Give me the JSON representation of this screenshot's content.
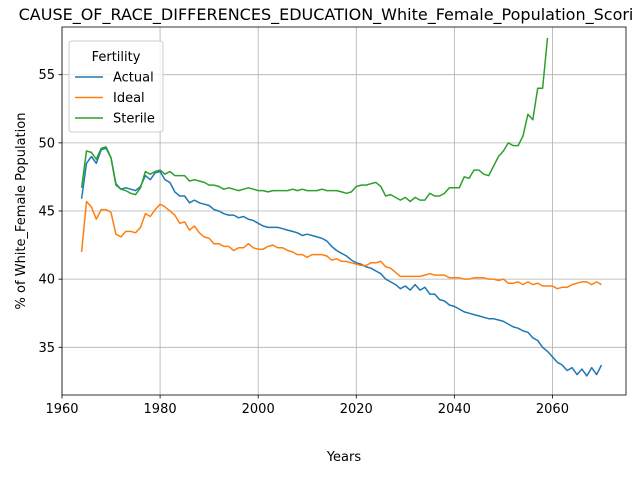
{
  "chart_data": {
    "type": "line",
    "title": "CAUSE_OF_RACE_DIFFERENCES_EDUCATION_White_Female_Population_Scori",
    "xlabel": "Years",
    "ylabel": "% of White_Female Population",
    "xlim": [
      1960,
      2075
    ],
    "ylim": [
      31.5,
      58.5
    ],
    "xticks": [
      1960,
      1980,
      2000,
      2020,
      2040,
      2060
    ],
    "yticks": [
      35,
      40,
      45,
      50,
      55
    ],
    "grid": true,
    "legend": {
      "title": "Fertility",
      "placement": "top-left"
    },
    "series": [
      {
        "name": "Actual",
        "color": "#1f77b4",
        "x": [
          1964,
          1965,
          1966,
          1967,
          1968,
          1969,
          1970,
          1971,
          1972,
          1973,
          1974,
          1975,
          1976,
          1977,
          1978,
          1979,
          1980,
          1981,
          1982,
          1983,
          1984,
          1985,
          1986,
          1987,
          1988,
          1989,
          1990,
          1991,
          1992,
          1993,
          1994,
          1995,
          1996,
          1997,
          1998,
          1999,
          2000,
          2001,
          2002,
          2003,
          2004,
          2005,
          2006,
          2007,
          2008,
          2009,
          2010,
          2011,
          2012,
          2013,
          2014,
          2015,
          2016,
          2017,
          2018,
          2019,
          2020,
          2021,
          2022,
          2023,
          2024,
          2025,
          2026,
          2027,
          2028,
          2029,
          2030,
          2031,
          2032,
          2033,
          2034,
          2035,
          2036,
          2037,
          2038,
          2039,
          2040,
          2041,
          2042,
          2043,
          2044,
          2045,
          2046,
          2047,
          2048,
          2049,
          2050,
          2051,
          2052,
          2053,
          2054,
          2055,
          2056,
          2057,
          2058,
          2059,
          2060,
          2061,
          2062,
          2063,
          2064,
          2065,
          2066,
          2067,
          2068,
          2069,
          2070
        ],
        "values": [
          45.9,
          48.5,
          49.0,
          48.5,
          49.5,
          49.6,
          48.9,
          47.0,
          46.6,
          46.7,
          46.6,
          46.5,
          46.8,
          47.6,
          47.3,
          47.8,
          47.9,
          47.3,
          47.1,
          46.4,
          46.1,
          46.1,
          45.6,
          45.8,
          45.6,
          45.5,
          45.4,
          45.1,
          45.0,
          44.8,
          44.7,
          44.7,
          44.5,
          44.6,
          44.4,
          44.3,
          44.1,
          43.9,
          43.8,
          43.8,
          43.8,
          43.7,
          43.6,
          43.5,
          43.4,
          43.2,
          43.3,
          43.2,
          43.1,
          43.0,
          42.8,
          42.4,
          42.1,
          41.9,
          41.7,
          41.4,
          41.2,
          41.1,
          40.9,
          40.8,
          40.6,
          40.4,
          40.0,
          39.8,
          39.6,
          39.3,
          39.5,
          39.2,
          39.6,
          39.2,
          39.4,
          38.9,
          38.9,
          38.5,
          38.4,
          38.1,
          38.0,
          37.8,
          37.6,
          37.5,
          37.4,
          37.3,
          37.2,
          37.1,
          37.1,
          37.0,
          36.9,
          36.7,
          36.5,
          36.4,
          36.2,
          36.1,
          35.7,
          35.5,
          35.0,
          34.7,
          34.3,
          33.9,
          33.7,
          33.3,
          33.5,
          33.0,
          33.4,
          32.9,
          33.5,
          33.0,
          33.7
        ]
      },
      {
        "name": "Ideal",
        "color": "#ff7f0e",
        "x": [
          1964,
          1965,
          1966,
          1967,
          1968,
          1969,
          1970,
          1971,
          1972,
          1973,
          1974,
          1975,
          1976,
          1977,
          1978,
          1979,
          1980,
          1981,
          1982,
          1983,
          1984,
          1985,
          1986,
          1987,
          1988,
          1989,
          1990,
          1991,
          1992,
          1993,
          1994,
          1995,
          1996,
          1997,
          1998,
          1999,
          2000,
          2001,
          2002,
          2003,
          2004,
          2005,
          2006,
          2007,
          2008,
          2009,
          2010,
          2011,
          2012,
          2013,
          2014,
          2015,
          2016,
          2017,
          2018,
          2019,
          2020,
          2021,
          2022,
          2023,
          2024,
          2025,
          2026,
          2027,
          2028,
          2029,
          2030,
          2031,
          2032,
          2033,
          2034,
          2035,
          2036,
          2037,
          2038,
          2039,
          2040,
          2041,
          2042,
          2043,
          2044,
          2045,
          2046,
          2047,
          2048,
          2049,
          2050,
          2051,
          2052,
          2053,
          2054,
          2055,
          2056,
          2057,
          2058,
          2059,
          2060,
          2061,
          2062,
          2063,
          2064,
          2065,
          2066,
          2067,
          2068,
          2069,
          2070
        ],
        "values": [
          42.0,
          45.7,
          45.3,
          44.4,
          45.1,
          45.1,
          44.9,
          43.3,
          43.1,
          43.5,
          43.5,
          43.4,
          43.8,
          44.8,
          44.6,
          45.1,
          45.5,
          45.3,
          45.0,
          44.7,
          44.1,
          44.2,
          43.6,
          43.9,
          43.4,
          43.1,
          43.0,
          42.6,
          42.6,
          42.4,
          42.4,
          42.1,
          42.3,
          42.3,
          42.6,
          42.3,
          42.2,
          42.2,
          42.4,
          42.5,
          42.3,
          42.3,
          42.1,
          42.0,
          41.8,
          41.8,
          41.6,
          41.8,
          41.8,
          41.8,
          41.7,
          41.4,
          41.5,
          41.3,
          41.3,
          41.2,
          41.1,
          41.0,
          41.0,
          41.2,
          41.2,
          41.3,
          40.9,
          40.8,
          40.5,
          40.2,
          40.2,
          40.2,
          40.2,
          40.2,
          40.3,
          40.4,
          40.3,
          40.3,
          40.3,
          40.1,
          40.1,
          40.1,
          40.0,
          40.0,
          40.1,
          40.1,
          40.1,
          40.0,
          40.0,
          39.9,
          40.0,
          39.7,
          39.7,
          39.8,
          39.6,
          39.8,
          39.6,
          39.7,
          39.5,
          39.5,
          39.5,
          39.3,
          39.4,
          39.4,
          39.6,
          39.7,
          39.8,
          39.8,
          39.6,
          39.8,
          39.6
        ]
      },
      {
        "name": "Sterile",
        "color": "#2ca02c",
        "x": [
          1964,
          1965,
          1966,
          1967,
          1968,
          1969,
          1970,
          1971,
          1972,
          1973,
          1974,
          1975,
          1976,
          1977,
          1978,
          1979,
          1980,
          1981,
          1982,
          1983,
          1984,
          1985,
          1986,
          1987,
          1988,
          1989,
          1990,
          1991,
          1992,
          1993,
          1994,
          1995,
          1996,
          1997,
          1998,
          1999,
          2000,
          2001,
          2002,
          2003,
          2004,
          2005,
          2006,
          2007,
          2008,
          2009,
          2010,
          2011,
          2012,
          2013,
          2014,
          2015,
          2016,
          2017,
          2018,
          2019,
          2020,
          2021,
          2022,
          2023,
          2024,
          2025,
          2026,
          2027,
          2028,
          2029,
          2030,
          2031,
          2032,
          2033,
          2034,
          2035,
          2036,
          2037,
          2038,
          2039,
          2040,
          2041,
          2042,
          2043,
          2044,
          2045,
          2046,
          2047,
          2048,
          2049,
          2050,
          2051,
          2052,
          2053,
          2054,
          2055,
          2056,
          2057,
          2058,
          2059
        ],
        "values": [
          46.7,
          49.4,
          49.3,
          48.8,
          49.6,
          49.7,
          48.9,
          46.9,
          46.6,
          46.5,
          46.3,
          46.2,
          46.7,
          47.9,
          47.7,
          47.9,
          48.0,
          47.7,
          47.9,
          47.6,
          47.6,
          47.6,
          47.2,
          47.3,
          47.2,
          47.1,
          46.9,
          46.9,
          46.8,
          46.6,
          46.7,
          46.6,
          46.5,
          46.6,
          46.7,
          46.6,
          46.5,
          46.5,
          46.4,
          46.5,
          46.5,
          46.5,
          46.5,
          46.6,
          46.5,
          46.6,
          46.5,
          46.5,
          46.5,
          46.6,
          46.5,
          46.5,
          46.5,
          46.4,
          46.3,
          46.4,
          46.8,
          46.9,
          46.9,
          47.0,
          47.1,
          46.8,
          46.1,
          46.2,
          46.0,
          45.8,
          46.0,
          45.7,
          46.0,
          45.8,
          45.8,
          46.3,
          46.1,
          46.1,
          46.3,
          46.7,
          46.7,
          46.7,
          47.5,
          47.4,
          48.0,
          48.0,
          47.7,
          47.6,
          48.3,
          49.0,
          49.4,
          50.0,
          49.8,
          49.8,
          50.5,
          52.1,
          51.7,
          54.0,
          54.0,
          57.7
        ]
      }
    ]
  }
}
